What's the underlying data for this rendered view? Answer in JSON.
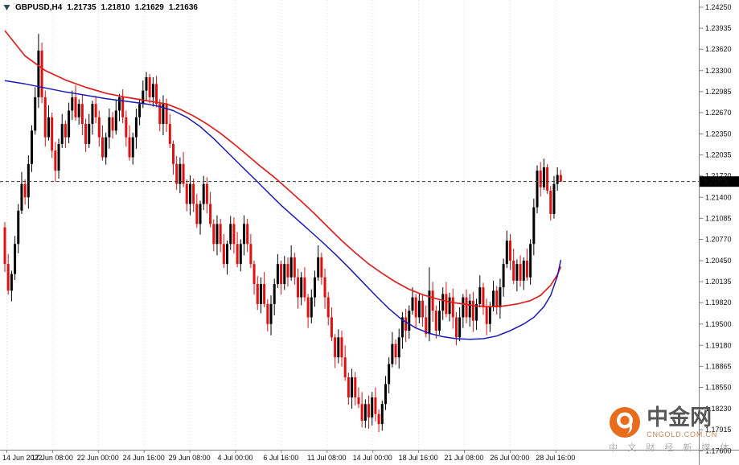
{
  "header": {
    "symbol_period": "GBPUSD,H4",
    "open": "1.21735",
    "high": "1.21810",
    "low": "1.21629",
    "close": "1.21636"
  },
  "watermark": {
    "brand": "中金网",
    "domain": "CNGOLD.COM.CN",
    "tagline": "中 文 财 经 新 媒 体"
  },
  "colors": {
    "candle_up": "#000000",
    "candle_down": "#e01010",
    "ma_slow_red": "#e02020",
    "ma_fast_blue": "#1a1ab8",
    "current_price_line": "#333333",
    "price_tag_bg": "#000000",
    "price_tag_text": "#ffffff",
    "grid": "#dedede",
    "axis_line": "#808080",
    "axis_text": "#111111",
    "watermark_orange": "#e8600a"
  },
  "chart_data": {
    "type": "candlestick",
    "symbol": "GBPUSD",
    "timeframe": "H4",
    "title": "GBPUSD,H4 1.21735 1.21810 1.21629 1.21636",
    "current_price": 1.21636,
    "current_price_label": "1.21636",
    "scale": {
      "top_price": 1.2425,
      "bottom_price": 1.176
    },
    "price_axis_labels": [
      "1.24250",
      "1.23935",
      "1.23620",
      "1.23300",
      "1.22985",
      "1.22670",
      "1.22350",
      "1.22035",
      "1.21720",
      "1.21400",
      "1.21085",
      "1.20770",
      "1.20450",
      "1.20135",
      "1.19820",
      "1.19500",
      "1.19180",
      "1.18865",
      "1.18550",
      "1.18230",
      "1.17915",
      "1.17600"
    ],
    "time_axis_labels": [
      "14 Jun 2022",
      "17 Jun 08:00",
      "22 Jun 00:00",
      "24 Jun 16:00",
      "29 Jun 08:00",
      "4 Jul 00:00",
      "6 Jul 16:00",
      "11 Jul 08:00",
      "14 Jul 00:00",
      "18 Jul 16:00",
      "21 Jul 08:00",
      "26 Jul 00:00",
      "28 Jul 16:00"
    ],
    "candles": [
      [
        1.2095,
        1.2103,
        1.2028,
        1.204
      ],
      [
        1.204,
        1.2055,
        1.1994,
        1.2
      ],
      [
        1.2,
        1.203,
        1.1984,
        1.2025
      ],
      [
        1.2025,
        1.2082,
        1.2016,
        1.207
      ],
      [
        1.207,
        1.213,
        1.2056,
        1.212
      ],
      [
        1.212,
        1.2178,
        1.2115,
        1.216
      ],
      [
        1.216,
        1.2167,
        1.2129,
        1.214
      ],
      [
        1.214,
        1.2203,
        1.2123,
        1.219
      ],
      [
        1.219,
        1.2248,
        1.2178,
        1.224
      ],
      [
        1.224,
        1.2305,
        1.2234,
        1.229
      ],
      [
        1.229,
        1.2385,
        1.2274,
        1.236
      ],
      [
        1.236,
        1.2372,
        1.2281,
        1.229
      ],
      [
        1.229,
        1.23,
        1.2216,
        1.223
      ],
      [
        1.223,
        1.2278,
        1.2225,
        1.226
      ],
      [
        1.226,
        1.2267,
        1.2199,
        1.221
      ],
      [
        1.221,
        1.2223,
        1.2163,
        1.218
      ],
      [
        1.218,
        1.2228,
        1.2168,
        1.222
      ],
      [
        1.222,
        1.2265,
        1.2214,
        1.225
      ],
      [
        1.225,
        1.2255,
        1.2214,
        1.223
      ],
      [
        1.223,
        1.2282,
        1.2221,
        1.227
      ],
      [
        1.227,
        1.23,
        1.2256,
        1.229
      ],
      [
        1.229,
        1.2308,
        1.2255,
        1.226
      ],
      [
        1.226,
        1.2287,
        1.2249,
        1.228
      ],
      [
        1.228,
        1.2293,
        1.2233,
        1.225
      ],
      [
        1.225,
        1.2258,
        1.2208,
        1.222
      ],
      [
        1.222,
        1.2265,
        1.2214,
        1.225
      ],
      [
        1.225,
        1.2285,
        1.2234,
        1.228
      ],
      [
        1.228,
        1.2292,
        1.2251,
        1.226
      ],
      [
        1.226,
        1.227,
        1.2216,
        1.223
      ],
      [
        1.223,
        1.2248,
        1.2195,
        1.22
      ],
      [
        1.22,
        1.2237,
        1.2189,
        1.223
      ],
      [
        1.223,
        1.2273,
        1.2213,
        1.226
      ],
      [
        1.226,
        1.2268,
        1.2228,
        1.224
      ],
      [
        1.224,
        1.2285,
        1.2234,
        1.227
      ],
      [
        1.227,
        1.2295,
        1.2254,
        1.229
      ],
      [
        1.229,
        1.2302,
        1.2251,
        1.226
      ],
      [
        1.226,
        1.227,
        1.2216,
        1.223
      ],
      [
        1.223,
        1.2248,
        1.2195,
        1.22
      ],
      [
        1.22,
        1.2237,
        1.2189,
        1.223
      ],
      [
        1.223,
        1.2273,
        1.2213,
        1.226
      ],
      [
        1.226,
        1.2288,
        1.2248,
        1.228
      ],
      [
        1.228,
        1.2315,
        1.2274,
        1.23
      ],
      [
        1.23,
        1.2328,
        1.2284,
        1.232
      ],
      [
        1.232,
        1.2325,
        1.2281,
        1.229
      ],
      [
        1.229,
        1.232,
        1.2276,
        1.231
      ],
      [
        1.231,
        1.2322,
        1.2275,
        1.228
      ],
      [
        1.228,
        1.2287,
        1.2239,
        1.225
      ],
      [
        1.225,
        1.2293,
        1.2233,
        1.228
      ],
      [
        1.228,
        1.2288,
        1.2238,
        1.225
      ],
      [
        1.225,
        1.2265,
        1.2214,
        1.222
      ],
      [
        1.222,
        1.2225,
        1.2174,
        1.219
      ],
      [
        1.219,
        1.2202,
        1.2151,
        1.216
      ],
      [
        1.216,
        1.22,
        1.2146,
        1.219
      ],
      [
        1.219,
        1.2208,
        1.2155,
        1.216
      ],
      [
        1.216,
        1.2167,
        1.2119,
        1.213
      ],
      [
        1.213,
        1.2173,
        1.2113,
        1.216
      ],
      [
        1.216,
        1.2168,
        1.2118,
        1.213
      ],
      [
        1.213,
        1.2145,
        1.2094,
        1.21
      ],
      [
        1.21,
        1.2135,
        1.2084,
        1.213
      ],
      [
        1.213,
        1.2172,
        1.2121,
        1.216
      ],
      [
        1.216,
        1.217,
        1.2116,
        1.213
      ],
      [
        1.213,
        1.2148,
        1.2095,
        1.21
      ],
      [
        1.21,
        1.2107,
        1.2059,
        1.207
      ],
      [
        1.207,
        1.2113,
        1.2053,
        1.21
      ],
      [
        1.21,
        1.2108,
        1.2058,
        1.207
      ],
      [
        1.207,
        1.2085,
        1.2034,
        1.204
      ],
      [
        1.204,
        1.2075,
        1.2024,
        1.207
      ],
      [
        1.207,
        1.2112,
        1.2061,
        1.21
      ],
      [
        1.21,
        1.211,
        1.2056,
        1.207
      ],
      [
        1.207,
        1.2088,
        1.2035,
        1.204
      ],
      [
        1.204,
        1.2077,
        1.2029,
        1.207
      ],
      [
        1.207,
        1.2113,
        1.2053,
        1.21
      ],
      [
        1.21,
        1.2108,
        1.2058,
        1.207
      ],
      [
        1.207,
        1.2085,
        1.2034,
        1.204
      ],
      [
        1.204,
        1.2045,
        1.1994,
        1.201
      ],
      [
        1.201,
        1.2022,
        1.1971,
        1.198
      ],
      [
        1.198,
        1.202,
        1.1966,
        1.201
      ],
      [
        1.201,
        1.2028,
        1.1975,
        1.198
      ],
      [
        1.198,
        1.1987,
        1.1939,
        1.195
      ],
      [
        1.195,
        1.1993,
        1.1933,
        1.198
      ],
      [
        1.198,
        1.2018,
        1.1963,
        1.201
      ],
      [
        1.201,
        1.2055,
        1.2004,
        1.204
      ],
      [
        1.204,
        1.2045,
        1.1994,
        1.201
      ],
      [
        1.201,
        1.2052,
        1.2001,
        1.204
      ],
      [
        1.204,
        1.205,
        1.2006,
        1.202
      ],
      [
        1.202,
        1.2068,
        1.2015,
        1.205
      ],
      [
        1.205,
        1.2057,
        1.2009,
        1.202
      ],
      [
        1.202,
        1.2033,
        1.1973,
        1.199
      ],
      [
        1.199,
        1.2028,
        1.1978,
        1.202
      ],
      [
        1.202,
        1.2035,
        1.1984,
        1.199
      ],
      [
        1.199,
        1.1995,
        1.1944,
        1.196
      ],
      [
        1.196,
        1.2002,
        1.1951,
        1.199
      ],
      [
        1.199,
        1.203,
        1.1976,
        1.202
      ],
      [
        1.202,
        1.2068,
        1.2015,
        1.205
      ],
      [
        1.205,
        1.2057,
        1.2009,
        1.202
      ],
      [
        1.202,
        1.2033,
        1.1973,
        1.199
      ],
      [
        1.199,
        1.1998,
        1.1948,
        1.196
      ],
      [
        1.196,
        1.1975,
        1.1924,
        1.193
      ],
      [
        1.193,
        1.1935,
        1.1884,
        1.19
      ],
      [
        1.19,
        1.1942,
        1.1891,
        1.193
      ],
      [
        1.193,
        1.194,
        1.1886,
        1.19
      ],
      [
        1.19,
        1.1918,
        1.1865,
        1.187
      ],
      [
        1.187,
        1.1877,
        1.1829,
        1.184
      ],
      [
        1.184,
        1.1883,
        1.1823,
        1.187
      ],
      [
        1.187,
        1.1878,
        1.1828,
        1.184
      ],
      [
        1.184,
        1.1855,
        1.1824,
        1.183
      ],
      [
        1.183,
        1.1848,
        1.1795,
        1.1805
      ],
      [
        1.1805,
        1.1837,
        1.1794,
        1.183
      ],
      [
        1.183,
        1.1843,
        1.1793,
        1.181
      ],
      [
        1.181,
        1.1848,
        1.1798,
        1.184
      ],
      [
        1.184,
        1.1855,
        1.1804,
        1.1815
      ],
      [
        1.1815,
        1.1822,
        1.1788,
        1.18
      ],
      [
        1.18,
        1.1835,
        1.179,
        1.183
      ],
      [
        1.183,
        1.1872,
        1.1821,
        1.186
      ],
      [
        1.186,
        1.19,
        1.1846,
        1.189
      ],
      [
        1.189,
        1.1938,
        1.1885,
        1.192
      ],
      [
        1.192,
        1.1927,
        1.1889,
        1.19
      ],
      [
        1.19,
        1.1943,
        1.1883,
        1.193
      ],
      [
        1.193,
        1.1968,
        1.1913,
        1.196
      ],
      [
        1.196,
        1.1973,
        1.1923,
        1.194
      ],
      [
        1.194,
        1.1978,
        1.1928,
        1.197
      ],
      [
        1.197,
        1.2005,
        1.1964,
        1.199
      ],
      [
        1.199,
        1.1995,
        1.1944,
        1.196
      ],
      [
        1.196,
        1.1997,
        1.1951,
        1.1985
      ],
      [
        1.1985,
        1.1995,
        1.1946,
        1.196
      ],
      [
        1.196,
        1.1978,
        1.193,
        1.1935
      ],
      [
        1.1935,
        1.2035,
        1.1924,
        1.2
      ],
      [
        1.2,
        1.2013,
        1.1953,
        1.197
      ],
      [
        1.197,
        1.1978,
        1.1928,
        1.194
      ],
      [
        1.194,
        1.1985,
        1.1934,
        1.197
      ],
      [
        1.197,
        1.2005,
        1.1956,
        1.1995
      ],
      [
        1.1995,
        1.2013,
        1.196,
        1.1965
      ],
      [
        1.1965,
        1.1997,
        1.1954,
        1.199
      ],
      [
        1.199,
        1.2003,
        1.1943,
        1.196
      ],
      [
        1.196,
        1.1968,
        1.1918,
        1.193
      ],
      [
        1.193,
        1.1975,
        1.1924,
        1.196
      ],
      [
        1.196,
        1.1995,
        1.1944,
        1.199
      ],
      [
        1.199,
        1.2002,
        1.1951,
        1.196
      ],
      [
        1.196,
        1.1995,
        1.1946,
        1.1985
      ],
      [
        1.1985,
        1.1998,
        1.1938,
        1.1955
      ],
      [
        1.1955,
        1.1988,
        1.1941,
        1.198
      ],
      [
        1.198,
        1.2023,
        1.1975,
        1.2005
      ],
      [
        1.2005,
        1.2012,
        1.1964,
        1.1975
      ],
      [
        1.1975,
        1.1988,
        1.1933,
        1.195
      ],
      [
        1.195,
        1.1983,
        1.1938,
        1.1975
      ],
      [
        1.1975,
        1.2015,
        1.1969,
        1.2
      ],
      [
        1.2,
        1.2007,
        1.1964,
        1.1975
      ],
      [
        1.1975,
        1.2018,
        1.1958,
        1.2005
      ],
      [
        1.2005,
        1.2048,
        1.1991,
        1.204
      ],
      [
        1.204,
        1.209,
        1.2034,
        1.2075
      ],
      [
        1.2075,
        1.2085,
        1.2031,
        1.2045
      ],
      [
        1.2045,
        1.2063,
        1.201,
        1.2015
      ],
      [
        1.2015,
        1.2047,
        1.1999,
        1.204
      ],
      [
        1.204,
        1.2053,
        1.2006,
        1.2015
      ],
      [
        1.2015,
        1.205,
        1.2001,
        1.2045
      ],
      [
        1.2045,
        1.2063,
        1.2015,
        1.202
      ],
      [
        1.202,
        1.2077,
        1.2009,
        1.207
      ],
      [
        1.207,
        1.2138,
        1.2053,
        1.2125
      ],
      [
        1.2125,
        1.2188,
        1.2116,
        1.218
      ],
      [
        1.218,
        1.2193,
        1.2141,
        1.2155
      ],
      [
        1.2155,
        1.2198,
        1.2151,
        1.2185
      ],
      [
        1.2185,
        1.219,
        1.2145,
        1.215
      ],
      [
        1.215,
        1.2157,
        1.2105,
        1.2115
      ],
      [
        1.2115,
        1.2172,
        1.2108,
        1.216
      ],
      [
        1.216,
        1.2185,
        1.215,
        1.21735
      ],
      [
        1.21735,
        1.2181,
        1.21629,
        1.21636
      ]
    ],
    "ma_slow_red_anchors": [
      [
        0,
        1.239
      ],
      [
        6,
        1.2352
      ],
      [
        12,
        1.233
      ],
      [
        18,
        1.2316
      ],
      [
        24,
        1.2305
      ],
      [
        30,
        1.2296
      ],
      [
        36,
        1.229
      ],
      [
        42,
        1.2285
      ],
      [
        48,
        1.228
      ],
      [
        52,
        1.2272
      ],
      [
        56,
        1.2262
      ],
      [
        60,
        1.225
      ],
      [
        64,
        1.2236
      ],
      [
        68,
        1.222
      ],
      [
        72,
        1.2203
      ],
      [
        76,
        1.2186
      ],
      [
        80,
        1.217
      ],
      [
        84,
        1.2152
      ],
      [
        88,
        1.2134
      ],
      [
        92,
        1.2115
      ],
      [
        96,
        1.2095
      ],
      [
        100,
        1.2075
      ],
      [
        104,
        1.2057
      ],
      [
        108,
        1.204
      ],
      [
        112,
        1.2026
      ],
      [
        116,
        1.2013
      ],
      [
        120,
        1.2002
      ],
      [
        124,
        1.1994
      ],
      [
        128,
        1.1988
      ],
      [
        132,
        1.1983
      ],
      [
        136,
        1.198
      ],
      [
        140,
        1.1977
      ],
      [
        144,
        1.1976
      ],
      [
        148,
        1.1977
      ],
      [
        152,
        1.198
      ],
      [
        156,
        1.1985
      ],
      [
        159,
        1.1993
      ],
      [
        162,
        1.2008
      ],
      [
        164,
        1.2024
      ],
      [
        165,
        1.2036
      ]
    ],
    "ma_fast_blue_anchors": [
      [
        0,
        1.2315
      ],
      [
        6,
        1.231
      ],
      [
        12,
        1.2304
      ],
      [
        18,
        1.2298
      ],
      [
        24,
        1.2293
      ],
      [
        30,
        1.2288
      ],
      [
        36,
        1.2284
      ],
      [
        42,
        1.228
      ],
      [
        46,
        1.2276
      ],
      [
        50,
        1.227
      ],
      [
        54,
        1.226
      ],
      [
        58,
        1.2246
      ],
      [
        62,
        1.2228
      ],
      [
        66,
        1.2208
      ],
      [
        70,
        1.2188
      ],
      [
        74,
        1.2168
      ],
      [
        78,
        1.2148
      ],
      [
        82,
        1.2128
      ],
      [
        86,
        1.211
      ],
      [
        90,
        1.2092
      ],
      [
        94,
        1.2074
      ],
      [
        98,
        1.2055
      ],
      [
        102,
        1.2035
      ],
      [
        106,
        1.2014
      ],
      [
        110,
        1.1993
      ],
      [
        114,
        1.1973
      ],
      [
        118,
        1.1956
      ],
      [
        122,
        1.1944
      ],
      [
        126,
        1.1936
      ],
      [
        130,
        1.1931
      ],
      [
        134,
        1.1928
      ],
      [
        138,
        1.1927
      ],
      [
        142,
        1.1928
      ],
      [
        146,
        1.1932
      ],
      [
        150,
        1.194
      ],
      [
        154,
        1.195
      ],
      [
        157,
        1.196
      ],
      [
        160,
        1.1976
      ],
      [
        162,
        1.1993
      ],
      [
        164,
        1.2022
      ],
      [
        165,
        1.2046
      ]
    ]
  }
}
